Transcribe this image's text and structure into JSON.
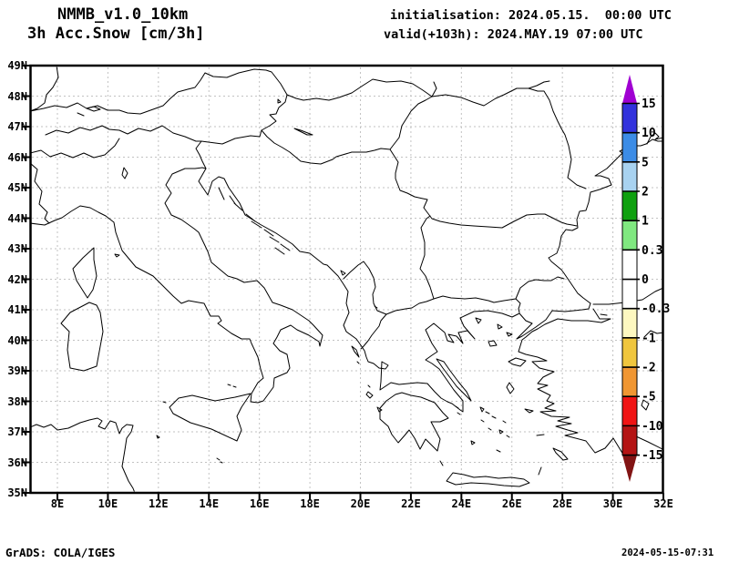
{
  "header": {
    "model": "NMMB_v1.0_10km",
    "product": "3h Acc.Snow [cm/3h]",
    "init": "initialisation: 2024.05.15.  00:00 UTC",
    "valid": "valid(+103h): 2024.MAY.19 07:00 UTC"
  },
  "axes": {
    "lat_labels": [
      "49N",
      "48N",
      "47N",
      "46N",
      "45N",
      "44N",
      "43N",
      "42N",
      "41N",
      "40N",
      "39N",
      "38N",
      "37N",
      "36N",
      "35N"
    ],
    "lon_labels": [
      "8E",
      "10E",
      "12E",
      "14E",
      "16E",
      "18E",
      "20E",
      "22E",
      "24E",
      "26E",
      "28E",
      "30E",
      "32E"
    ]
  },
  "colorbar": {
    "unit": "cm/3h",
    "labels": [
      "15",
      "10",
      "5",
      "2",
      "1",
      "0.3",
      "0",
      "-0.3",
      "-1",
      "-2",
      "-5",
      "-10",
      "-15"
    ],
    "segment_colors": [
      "#3232dc",
      "#3c8ce6",
      "#a8d2f0",
      "#0fa00f",
      "#80e880",
      "#ffffff",
      "#ffffff",
      "#fdf8c0",
      "#f0c63e",
      "#f09632",
      "#f01414",
      "#b41414"
    ],
    "arrow_top_color": "#a000d2",
    "arrow_bottom_color": "#821414"
  },
  "footer": {
    "left": "GrADS: COLA/IGES",
    "right": "2024-05-15-07:31"
  },
  "chart_data": {
    "type": "map",
    "title": "NMMB_v1.0_10km 3h Acc.Snow [cm/3h]",
    "initialisation": "2024.05.15. 00:00 UTC",
    "valid": "(+103h) 2024.MAY.19 07:00 UTC",
    "region": {
      "lon_range_deg_e": [
        7,
        32
      ],
      "lat_range_deg_n": [
        35,
        49
      ]
    },
    "lat_gridlines_every_deg": 1,
    "lon_gridlines_every_deg": 2,
    "colorbar_levels_cm_per_3h": [
      15,
      10,
      5,
      2,
      1,
      0.3,
      0,
      -0.3,
      -1,
      -2,
      -5,
      -10,
      -15
    ],
    "shaded_regions": [],
    "note": "No snow accumulation is shaded anywhere in the domain at this valid time; map shows coastlines and country borders only."
  }
}
